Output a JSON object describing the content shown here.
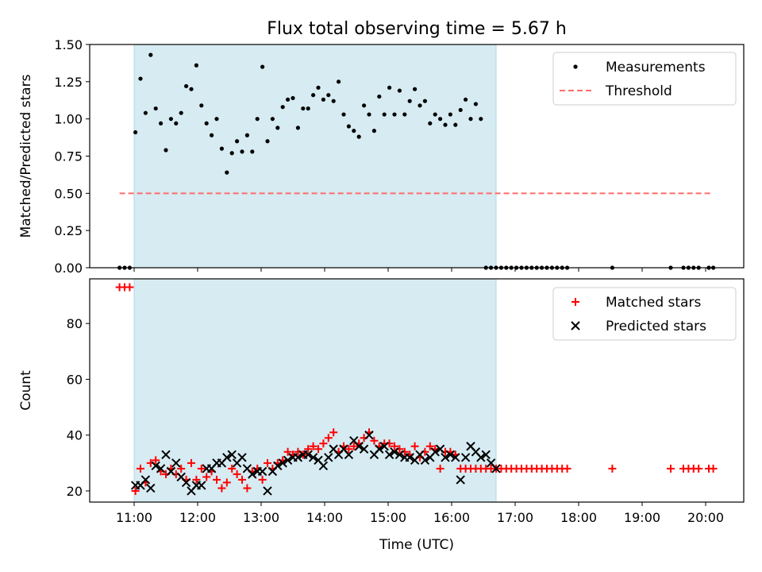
{
  "title": "Flux total observing time = 5.67 h",
  "chart_data": [
    {
      "type": "scatter",
      "ylabel": "Matched/Predicted stars",
      "ylim": [
        0.0,
        1.5
      ],
      "yticks": [
        0.0,
        0.25,
        0.5,
        0.75,
        1.0,
        1.25,
        1.5
      ],
      "yticklabels": [
        "0.00",
        "0.25",
        "0.50",
        "0.75",
        "1.00",
        "1.25",
        "1.50"
      ],
      "xlim": [
        10.3,
        20.6
      ],
      "shaded_span": {
        "x0": 11.0,
        "x1": 16.7,
        "color": "#add8e6"
      },
      "threshold": {
        "value": 0.5,
        "x0": 10.77,
        "x1": 20.12,
        "color": "#ff6b6b"
      },
      "legend": {
        "placement": "top-right",
        "entries": [
          "Measurements",
          "Threshold"
        ]
      },
      "series": [
        {
          "name": "Measurements",
          "color": "#000000",
          "x": [
            10.77,
            10.85,
            10.93,
            11.02,
            11.1,
            11.18,
            11.26,
            11.34,
            11.42,
            11.5,
            11.58,
            11.66,
            11.74,
            11.82,
            11.9,
            11.98,
            12.06,
            12.14,
            12.22,
            12.3,
            12.38,
            12.46,
            12.54,
            12.62,
            12.7,
            12.78,
            12.86,
            12.94,
            13.02,
            13.1,
            13.18,
            13.26,
            13.34,
            13.42,
            13.5,
            13.58,
            13.66,
            13.74,
            13.82,
            13.9,
            13.98,
            14.06,
            14.14,
            14.22,
            14.3,
            14.38,
            14.46,
            14.54,
            14.62,
            14.7,
            14.78,
            14.86,
            14.94,
            15.02,
            15.1,
            15.18,
            15.26,
            15.34,
            15.42,
            15.5,
            15.58,
            15.66,
            15.74,
            15.82,
            15.9,
            15.98,
            16.06,
            16.14,
            16.22,
            16.3,
            16.38,
            16.46,
            16.54,
            16.62,
            16.7,
            16.78,
            16.86,
            16.94,
            17.02,
            17.1,
            17.18,
            17.26,
            17.34,
            17.42,
            17.5,
            17.58,
            17.66,
            17.74,
            17.82,
            18.53,
            19.45,
            19.65,
            19.73,
            19.81,
            19.89,
            20.05,
            20.12
          ],
          "y": [
            0.0,
            0.0,
            0.0,
            0.91,
            1.27,
            1.04,
            1.43,
            1.07,
            0.97,
            0.79,
            1.0,
            0.97,
            1.04,
            1.22,
            1.2,
            1.36,
            1.09,
            0.97,
            0.89,
            1.0,
            0.8,
            0.64,
            0.77,
            0.85,
            0.78,
            0.89,
            0.78,
            1.0,
            1.35,
            0.85,
            1.0,
            0.94,
            1.08,
            1.13,
            1.14,
            0.94,
            1.07,
            1.07,
            1.16,
            1.21,
            1.13,
            1.16,
            1.12,
            1.25,
            1.03,
            0.95,
            0.92,
            0.88,
            1.09,
            1.03,
            0.92,
            1.15,
            1.03,
            1.21,
            1.03,
            1.19,
            1.03,
            1.12,
            1.2,
            1.09,
            1.12,
            0.97,
            1.03,
            1.0,
            0.96,
            1.03,
            0.96,
            1.06,
            1.13,
            1.0,
            1.1,
            1.0,
            0.0,
            0.0,
            0.0,
            0.0,
            0.0,
            0.0,
            0.0,
            0.0,
            0.0,
            0.0,
            0.0,
            0.0,
            0.0,
            0.0,
            0.0,
            0.0,
            0.0,
            0.0,
            0.0,
            0.0,
            0.0,
            0.0,
            0.0,
            0.0,
            0.0
          ]
        },
        {
          "name": "Threshold",
          "color": "#ff6b6b",
          "x": [
            10.77,
            20.12
          ],
          "y": [
            0.5,
            0.5
          ]
        }
      ]
    },
    {
      "type": "scatter",
      "xlabel": "Time (UTC)",
      "ylabel": "Count",
      "ylim": [
        16,
        96
      ],
      "yticks": [
        20,
        40,
        60,
        80
      ],
      "yticklabels": [
        "20",
        "40",
        "60",
        "80"
      ],
      "xlim": [
        10.3,
        20.6
      ],
      "xticks": [
        11,
        12,
        13,
        14,
        15,
        16,
        17,
        18,
        19,
        20
      ],
      "xticklabels": [
        "11:00",
        "12:00",
        "13:00",
        "14:00",
        "15:00",
        "16:00",
        "17:00",
        "18:00",
        "19:00",
        "20:00"
      ],
      "shaded_span": {
        "x0": 11.0,
        "x1": 16.7,
        "color": "#add8e6"
      },
      "legend": {
        "placement": "top-right",
        "entries": [
          "Matched stars",
          "Predicted stars"
        ]
      },
      "series": [
        {
          "name": "Matched stars",
          "color": "#ff0000",
          "marker": "+",
          "x": [
            10.77,
            10.85,
            10.93,
            11.02,
            11.1,
            11.18,
            11.26,
            11.34,
            11.42,
            11.5,
            11.58,
            11.66,
            11.74,
            11.82,
            11.9,
            11.98,
            12.06,
            12.14,
            12.22,
            12.3,
            12.38,
            12.46,
            12.54,
            12.62,
            12.7,
            12.78,
            12.86,
            12.94,
            13.02,
            13.1,
            13.18,
            13.26,
            13.34,
            13.42,
            13.5,
            13.58,
            13.66,
            13.74,
            13.82,
            13.9,
            13.98,
            14.06,
            14.14,
            14.22,
            14.3,
            14.38,
            14.46,
            14.54,
            14.62,
            14.7,
            14.78,
            14.86,
            14.94,
            15.02,
            15.1,
            15.18,
            15.26,
            15.34,
            15.42,
            15.5,
            15.58,
            15.66,
            15.74,
            15.82,
            15.9,
            15.98,
            16.06,
            16.14,
            16.22,
            16.3,
            16.38,
            16.46,
            16.54,
            16.62,
            16.7,
            16.78,
            16.86,
            16.94,
            17.02,
            17.1,
            17.18,
            17.26,
            17.34,
            17.42,
            17.5,
            17.58,
            17.66,
            17.74,
            17.82,
            18.53,
            19.45,
            19.65,
            19.73,
            19.81,
            19.89,
            20.05,
            20.12
          ],
          "y": [
            93,
            93,
            93,
            20,
            28,
            23,
            30,
            31,
            27,
            26,
            28,
            26,
            28,
            24,
            30,
            24,
            28,
            25,
            27,
            24,
            21,
            23,
            28,
            26,
            24,
            21,
            27,
            28,
            24,
            30,
            28,
            30,
            31,
            34,
            33,
            34,
            33,
            35,
            36,
            35,
            37,
            39,
            41,
            34,
            36,
            35,
            36,
            37,
            39,
            41,
            38,
            36,
            37,
            37,
            36,
            35,
            34,
            33,
            36,
            32,
            34,
            36,
            35,
            28,
            34,
            34,
            33,
            28,
            28,
            28,
            28,
            28,
            28,
            28,
            28,
            28,
            28,
            28,
            28,
            28,
            28,
            28,
            28,
            28,
            28,
            28,
            28,
            28,
            28,
            28,
            28,
            28,
            28,
            28,
            28,
            28,
            28
          ]
        },
        {
          "name": "Predicted stars",
          "color": "#000000",
          "marker": "x",
          "x": [
            11.02,
            11.1,
            11.18,
            11.26,
            11.34,
            11.42,
            11.5,
            11.58,
            11.66,
            11.74,
            11.82,
            11.9,
            11.98,
            12.06,
            12.14,
            12.22,
            12.3,
            12.38,
            12.46,
            12.54,
            12.62,
            12.7,
            12.78,
            12.86,
            12.94,
            13.02,
            13.1,
            13.18,
            13.26,
            13.34,
            13.42,
            13.5,
            13.58,
            13.66,
            13.74,
            13.82,
            13.9,
            13.98,
            14.06,
            14.14,
            14.22,
            14.3,
            14.38,
            14.46,
            14.54,
            14.62,
            14.7,
            14.78,
            14.86,
            14.94,
            15.02,
            15.1,
            15.18,
            15.26,
            15.34,
            15.42,
            15.5,
            15.58,
            15.66,
            15.74,
            15.82,
            15.9,
            15.98,
            16.06,
            16.14,
            16.22,
            16.3,
            16.38,
            16.46,
            16.54,
            16.62,
            16.7
          ],
          "y": [
            22,
            22,
            24,
            21,
            29,
            28,
            33,
            27,
            30,
            25,
            23,
            20,
            22,
            22,
            28,
            28,
            30,
            30,
            32,
            33,
            30,
            32,
            28,
            26,
            27,
            27,
            20,
            27,
            29,
            30,
            31,
            32,
            32,
            33,
            33,
            32,
            31,
            29,
            32,
            35,
            33,
            35,
            33,
            38,
            36,
            35,
            40,
            33,
            35,
            36,
            33,
            34,
            33,
            32,
            32,
            31,
            33,
            31,
            32,
            34,
            35,
            32,
            33,
            32,
            24,
            32,
            36,
            34,
            32,
            33,
            30,
            28
          ]
        }
      ]
    }
  ]
}
